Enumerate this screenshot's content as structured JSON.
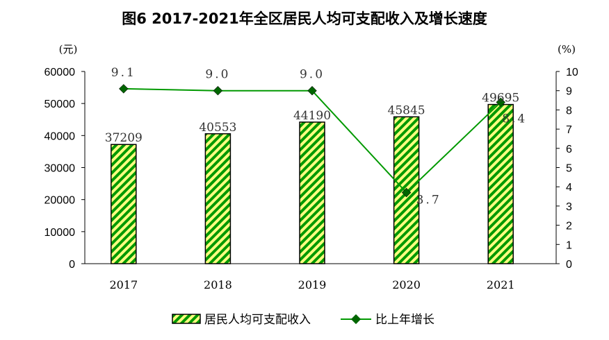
{
  "chart_data": {
    "type": "bar+line",
    "title": "图6 2017-2021年全区居民人均可支配收入及增长速度",
    "left_unit": "(元)",
    "right_unit": "(%)",
    "categories": [
      "2017",
      "2018",
      "2019",
      "2020",
      "2021"
    ],
    "series": [
      {
        "name": "居民人均可支配收入",
        "type": "bar",
        "axis": "left",
        "values": [
          37209,
          40553,
          44190,
          45845,
          49695
        ]
      },
      {
        "name": "比上年增长",
        "type": "line",
        "axis": "right",
        "values": [
          9.1,
          9.0,
          9.0,
          3.7,
          8.4
        ]
      }
    ],
    "ylim_left": [
      0,
      60000
    ],
    "yticks_left": [
      0,
      10000,
      20000,
      30000,
      40000,
      50000,
      60000
    ],
    "ylim_right": [
      0,
      10
    ],
    "yticks_right": [
      0,
      1,
      2,
      3,
      4,
      5,
      6,
      7,
      8,
      9,
      10
    ],
    "legend": "bottom",
    "colors": {
      "bar_fill": "#ffff80",
      "bar_stripe": "#009900",
      "line": "#009900",
      "marker": "#006600"
    }
  }
}
